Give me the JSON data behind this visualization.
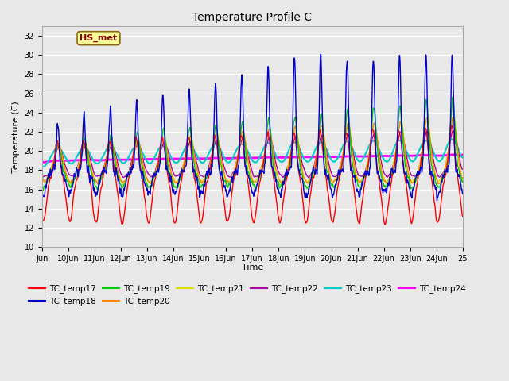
{
  "title": "Temperature Profile C",
  "xlabel": "Time",
  "ylabel": "Temperature (C)",
  "ylim": [
    10,
    33
  ],
  "yticks": [
    10,
    12,
    14,
    16,
    18,
    20,
    22,
    24,
    26,
    28,
    30,
    32
  ],
  "annotation_text": "HS_met",
  "annotation_color": "#8B0000",
  "annotation_bg": "#FFFF99",
  "annotation_border": "#8B6914",
  "series_colors": {
    "TC_temp17": "#FF0000",
    "TC_temp18": "#0000CD",
    "TC_temp19": "#00CC00",
    "TC_temp20": "#FF8800",
    "TC_temp21": "#DDDD00",
    "TC_temp22": "#AA00AA",
    "TC_temp23": "#00CCCC",
    "TC_temp24": "#FF00FF"
  },
  "series_lw": {
    "TC_temp17": 1.0,
    "TC_temp18": 1.0,
    "TC_temp19": 1.0,
    "TC_temp20": 1.0,
    "TC_temp21": 1.0,
    "TC_temp22": 1.0,
    "TC_temp23": 1.5,
    "TC_temp24": 2.0
  },
  "plot_bg": "#E8E8E8",
  "grid_color": "#FFFFFF",
  "x_start": 9,
  "x_end": 25,
  "xtick_positions": [
    9,
    10,
    11,
    12,
    13,
    14,
    15,
    16,
    17,
    18,
    19,
    20,
    21,
    22,
    23,
    24,
    25
  ],
  "xtick_labels": [
    "Jun",
    "10Jun",
    "11Jun",
    "12Jun",
    "13Jun",
    "14Jun",
    "15Jun",
    "16Jun",
    "17Jun",
    "18Jun",
    "19Jun",
    "20Jun",
    "21Jun",
    "22Jun",
    "23Jun",
    "24Jun",
    "25"
  ],
  "legend_row1": [
    "TC_temp17",
    "TC_temp18",
    "TC_temp19",
    "TC_temp20",
    "TC_temp21",
    "TC_temp22"
  ],
  "legend_row2": [
    "TC_temp23",
    "TC_temp24"
  ]
}
